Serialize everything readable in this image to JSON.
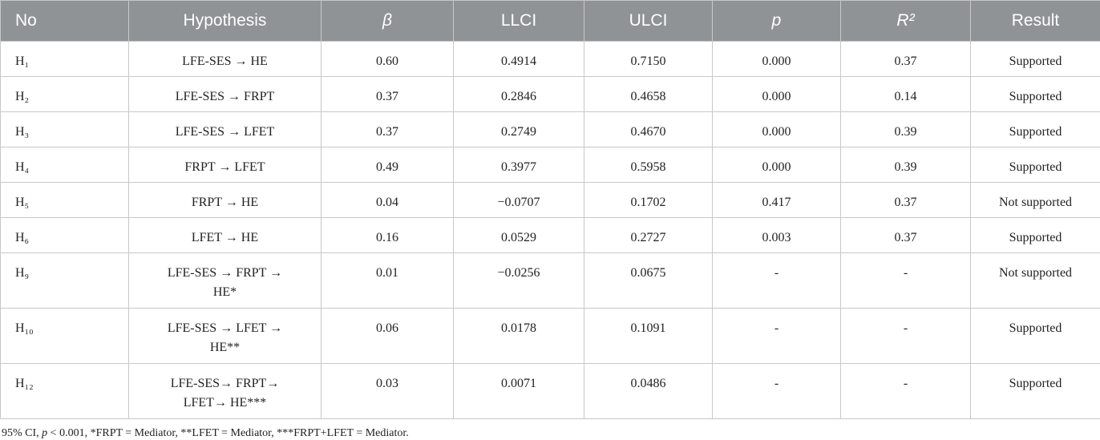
{
  "table": {
    "header": [
      "No",
      "Hypothesis",
      "β",
      "LLCI",
      "ULCI",
      "p",
      "R²",
      "Result"
    ],
    "rows": [
      [
        "H₁",
        "LFE-SES →  HE",
        "0.60",
        "0.4914",
        "0.7150",
        "0.000",
        "0.37",
        "Supported"
      ],
      [
        "H₂",
        "LFE-SES →  FRPT",
        "0.37",
        "0.2846",
        "0.4658",
        "0.000",
        "0.14",
        "Supported"
      ],
      [
        "H₃",
        "LFE-SES →  LFET",
        "0.37",
        "0.2749",
        "0.4670",
        "0.000",
        "0.39",
        "Supported"
      ],
      [
        "H₄",
        "FRPT →  LFET",
        "0.49",
        "0.3977",
        "0.5958",
        "0.000",
        "0.39",
        "Supported"
      ],
      [
        "H₅",
        "FRPT →  HE",
        "0.04",
        "−0.0707",
        "0.1702",
        "0.417",
        "0.37",
        "Not supported"
      ],
      [
        "H₆",
        "LFET →  HE",
        "0.16",
        "0.0529",
        "0.2727",
        "0.003",
        "0.37",
        "Supported"
      ],
      [
        "H₉",
        [
          "LFE-SES →  FRPT →",
          "HE*"
        ],
        "0.01",
        "−0.0256",
        "0.0675",
        "-",
        "-",
        "Not supported"
      ],
      [
        "H₁₀",
        [
          "LFE-SES →  LFET →",
          "HE**"
        ],
        "0.06",
        "0.0178",
        "0.1091",
        "-",
        "-",
        "Supported"
      ],
      [
        "H₁₂",
        [
          "LFE-SES→  FRPT→",
          "LFET→  HE***"
        ],
        "0.03",
        "0.0071",
        "0.0486",
        "-",
        "-",
        "Supported"
      ]
    ]
  },
  "footnote": [
    "95% CI, ",
    "p",
    " < 0.001, *FRPT = Mediator, **LFET = Mediator, ***FRPT+LFET = Mediator."
  ]
}
